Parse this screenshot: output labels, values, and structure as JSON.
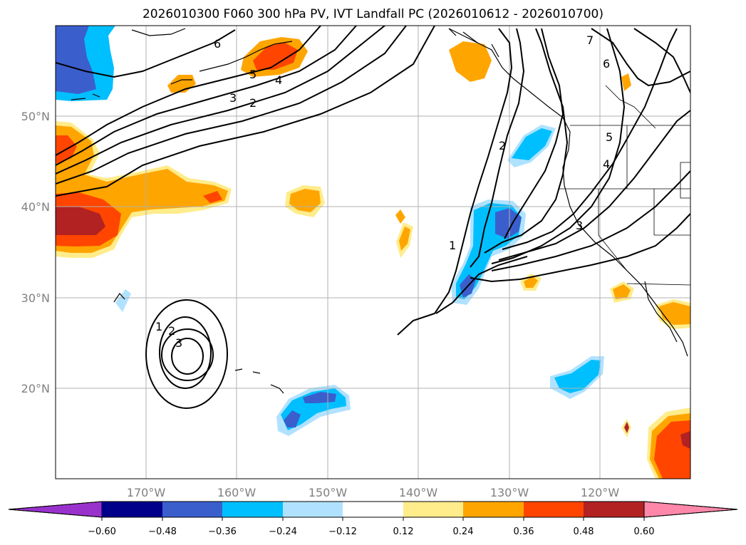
{
  "title": "2026010300 F060 300 hPa PV, IVT Landfall PC (2026010612 - 2026010700)",
  "lon_labels": [
    "170°W",
    "160°W",
    "150°W",
    "140°W",
    "130°W",
    "120°W"
  ],
  "lat_labels": [
    "50°N",
    "40°N",
    "30°N",
    "20°N"
  ],
  "colorbar": {
    "tick_labels": [
      "−0.60",
      "−0.48",
      "−0.36",
      "−0.24",
      "−0.12",
      "0.12",
      "0.24",
      "0.36",
      "0.48",
      "0.60"
    ],
    "colors": [
      "#9932CC",
      "#00008B",
      "#3A5FCD",
      "#00BFFF",
      "#B0E2FF",
      "#FFFFFF",
      "#FFEC8B",
      "#FFA500",
      "#FF4500",
      "#B22222",
      "#FF88AA"
    ],
    "extend": "both"
  },
  "contour_labels": {
    "pv_low_1": "1",
    "pv_low_2": "2",
    "pv_low_3": "3",
    "north_6": "6",
    "north_5": "5",
    "north_4": "4",
    "north_3": "3",
    "north_2": "2",
    "coast_1": "1",
    "coast_2": "2",
    "coast_3": "3",
    "east_4": "4",
    "east_5": "5",
    "east_6": "6",
    "east_7": "7"
  }
}
